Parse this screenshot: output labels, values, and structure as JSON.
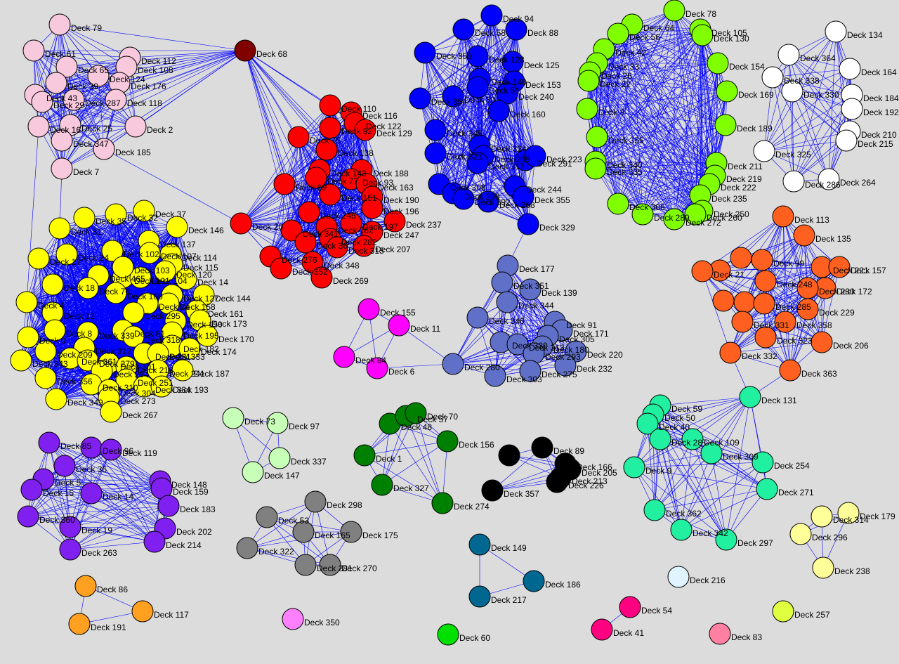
{
  "clusters": [
    {
      "color": "#f8c8dc",
      "nodes": [
        "Deck 79",
        "Deck 61",
        "Deck 65",
        "Deck 112",
        "Deck 108",
        "Deck 124",
        "Deck 39",
        "Deck 176",
        "Deck 43",
        "Deck 29",
        "Deck 287",
        "Deck 118",
        "Deck 16",
        "Deck 25",
        "Deck 2",
        "Deck 347",
        "Deck 185",
        "Deck 7"
      ]
    },
    {
      "color": "#800000",
      "nodes": [
        "Deck 68"
      ]
    },
    {
      "color": "#ff0000",
      "nodes": [
        "Deck 110",
        "Deck 116",
        "Deck 122",
        "Deck 92",
        "Deck 129",
        "Deck 75",
        "Deck 138",
        "Deck 143",
        "Deck 188",
        "Deck 77",
        "Deck 69",
        "Deck 93",
        "Deck 163",
        "Deck 190",
        "Deck 151",
        "Deck 196",
        "Deck 245",
        "Deck 20",
        "Deck 341",
        "Deck 197",
        "Deck 237",
        "Deck 247",
        "Deck 162",
        "Deck 282",
        "Deck 36",
        "Deck 315",
        "Deck 207",
        "Deck 276",
        "Deck 348",
        "Deck 352",
        "Deck 269"
      ]
    },
    {
      "color": "#0000ff",
      "nodes": [
        "Deck 94",
        "Deck 88",
        "Deck 58",
        "Deck 353",
        "Deck 128",
        "Deck 125",
        "Deck 140",
        "Deck 153",
        "Deck 51",
        "Deck 240",
        "Deck 30",
        "Deck 354",
        "Deck 160",
        "Deck 345",
        "Deck 324",
        "Deck 321",
        "Deck 209",
        "Deck 317",
        "Deck 291",
        "Deck 223",
        "Deck 308",
        "Deck 299",
        "Deck 292",
        "Deck 244",
        "Deck 268",
        "Deck 355",
        "Deck 329"
      ]
    },
    {
      "color": "#80ff00",
      "nodes": [
        "Deck 78",
        "Deck 105",
        "Deck 64",
        "Deck 130",
        "Deck 56",
        "Deck 42",
        "Deck 154",
        "Deck 33",
        "Deck 26",
        "Deck 22",
        "Deck 169",
        "Deck 3",
        "Deck 189",
        "Deck 355",
        "Deck 340",
        "Deck 335",
        "Deck 211",
        "Deck 219",
        "Deck 222",
        "Deck 235",
        "Deck 306",
        "Deck 250",
        "Deck 289",
        "Deck 272",
        "Deck 260"
      ]
    },
    {
      "color": "#ffffff",
      "nodes": [
        "Deck 134",
        "Deck 364",
        "Deck 164",
        "Deck 338",
        "Deck 330",
        "Deck 184",
        "Deck 192",
        "Deck 210",
        "Deck 215",
        "Deck 325",
        "Deck 286",
        "Deck 264"
      ]
    },
    {
      "color": "#ff6020",
      "nodes": [
        "Deck 113",
        "Deck 135",
        "Deck 99",
        "Deck 221",
        "Deck 157",
        "Deck 21",
        "Deck 248",
        "Deck 172",
        "Deck 230",
        "Deck 285",
        "Deck 229",
        "Deck 331",
        "Deck 358",
        "Deck 323",
        "Deck 206",
        "Deck 332",
        "Deck 363"
      ]
    },
    {
      "color": "#6070c8",
      "nodes": [
        "Deck 177",
        "Deck 351",
        "Deck 139",
        "Deck 344",
        "Deck 346",
        "Deck 91",
        "Deck 171",
        "Deck 305",
        "Deck 320",
        "Deck 313",
        "Deck 180",
        "Deck 220",
        "Deck 293",
        "Deck 280",
        "Deck 275",
        "Deck 232",
        "Deck 303"
      ]
    },
    {
      "color": "#ff00ff",
      "nodes": [
        "Deck 155",
        "Deck 11",
        "Deck 84",
        "Deck 6"
      ]
    },
    {
      "color": "#ffff00",
      "nodes": [
        "Deck 37",
        "Deck 35",
        "Deck 32",
        "Deck 146",
        "Deck 31",
        "Deck 137",
        "Deck 102",
        "Deck 107",
        "Deck 114",
        "Deck 24",
        "Deck 17",
        "Deck 115",
        "Deck 120",
        "Deck 465",
        "Deck 101",
        "Deck 104",
        "Deck 103",
        "Deck 14",
        "Deck 18",
        "Deck 76",
        "Deck 127",
        "Deck 144",
        "Deck 100",
        "Deck 4",
        "Deck 74",
        "Deck 158",
        "Deck 12",
        "Deck 295",
        "Deck 161",
        "Deck 173",
        "Deck 150",
        "Deck 195",
        "Deck 8",
        "Deck 339",
        "Deck 81",
        "Deck 170",
        "Deck 0",
        "Deck 318",
        "Deck 182",
        "Deck 174",
        "Deck 312",
        "Deck 231",
        "Deck 333",
        "Deck 209",
        "Deck 343",
        "Deck 361",
        "Deck 279",
        "Deck 301",
        "Deck 218",
        "Deck 241",
        "Deck 187",
        "Deck 294",
        "Deck 356",
        "Deck 310",
        "Deck 251",
        "Deck 334",
        "Deck 304",
        "Deck 193",
        "Deck 349",
        "Deck 273",
        "Deck 267"
      ]
    },
    {
      "color": "#c8ffb8",
      "nodes": [
        "Deck 73",
        "Deck 97",
        "Deck 337",
        "Deck 147"
      ]
    },
    {
      "color": "#008000",
      "nodes": [
        "Deck 48",
        "Deck 57",
        "Deck 70",
        "Deck 156",
        "Deck 1",
        "Deck 327",
        "Deck 274"
      ]
    },
    {
      "color": "#000000",
      "nodes": [
        "Deck 89",
        "Deck 166",
        "Deck 205",
        "Deck 213",
        "Deck 226",
        "Deck 357"
      ]
    },
    {
      "color": "#8020f0",
      "nodes": [
        "Deck 85",
        "Deck 96",
        "Deck 119",
        "Deck 36",
        "Deck 148",
        "Deck 5",
        "Deck 159",
        "Deck 15",
        "Deck 14",
        "Deck 183",
        "Deck 360",
        "Deck 19",
        "Deck 202",
        "Deck 263",
        "Deck 214"
      ]
    },
    {
      "color": "#808080",
      "nodes": [
        "Deck 298",
        "Deck 53",
        "Deck 165",
        "Deck 175",
        "Deck 322",
        "Deck 281",
        "Deck 270"
      ]
    },
    {
      "color": "#006890",
      "nodes": [
        "Deck 149",
        "Deck 186",
        "Deck 217"
      ]
    },
    {
      "color": "#20f0a0",
      "nodes": [
        "Deck 131",
        "Deck 59",
        "Deck 50",
        "Deck 40",
        "Deck 28",
        "Deck 109",
        "Deck 309",
        "Deck 254",
        "Deck 9",
        "Deck 271",
        "Deck 362",
        "Deck 342",
        "Deck 297"
      ]
    },
    {
      "color": "#ffff99",
      "nodes": [
        "Deck 314",
        "Deck 179",
        "Deck 296",
        "Deck 238"
      ]
    },
    {
      "color": "#ffa020",
      "nodes": [
        "Deck 86",
        "Deck 117",
        "Deck 191"
      ]
    },
    {
      "color": "#ff0080",
      "nodes": [
        "Deck 54",
        "Deck 41"
      ]
    },
    {
      "color": "#ff80ff",
      "nodes": [
        "Deck 350"
      ]
    },
    {
      "color": "#00e000",
      "nodes": [
        "Deck 60"
      ]
    },
    {
      "color": "#e0f4ff",
      "nodes": [
        "Deck 216"
      ]
    },
    {
      "color": "#e0ff40",
      "nodes": [
        "Deck 257"
      ]
    },
    {
      "color": "#ff80a0",
      "nodes": [
        "Deck 83"
      ]
    }
  ]
}
